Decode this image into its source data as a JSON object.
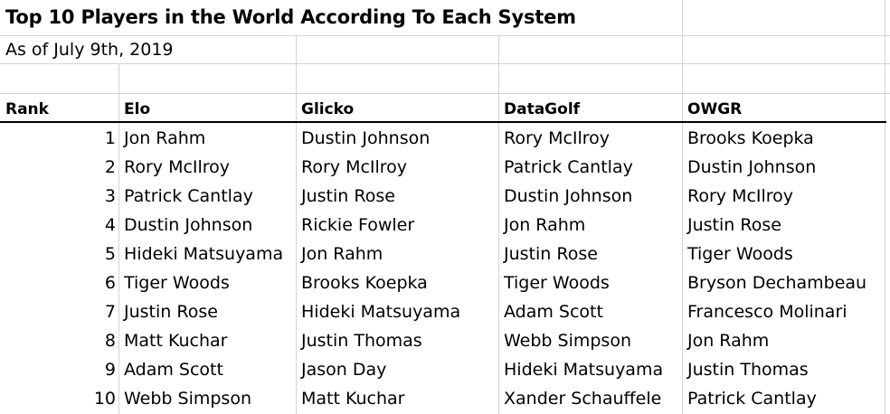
{
  "title": "Top 10 Players in the World According To Each System",
  "subtitle": "As of July 9th, 2019",
  "headers": [
    "Rank",
    "Elo",
    "Glicko",
    "DataGolf",
    "OWGR"
  ],
  "rows": [
    {
      "rank": "1",
      "elo": "Jon Rahm",
      "glicko": "Dustin Johnson",
      "datagolf": "Rory McIlroy",
      "owgr": "Brooks Koepka"
    },
    {
      "rank": "2",
      "elo": "Rory McIlroy",
      "glicko": "Rory McIlroy",
      "datagolf": "Patrick Cantlay",
      "owgr": "Dustin Johnson"
    },
    {
      "rank": "3",
      "elo": "Patrick Cantlay",
      "glicko": "Justin Rose",
      "datagolf": "Dustin Johnson",
      "owgr": "Rory McIlroy"
    },
    {
      "rank": "4",
      "elo": "Dustin Johnson",
      "glicko": "Rickie Fowler",
      "datagolf": "Jon Rahm",
      "owgr": "Justin Rose"
    },
    {
      "rank": "5",
      "elo": "Hideki Matsuyama",
      "glicko": "Jon Rahm",
      "datagolf": "Justin Rose",
      "owgr": "Tiger Woods"
    },
    {
      "rank": "6",
      "elo": "Tiger Woods",
      "glicko": "Brooks Koepka",
      "datagolf": "Tiger Woods",
      "owgr": "Bryson Dechambeau"
    },
    {
      "rank": "7",
      "elo": "Justin Rose",
      "glicko": "Hideki Matsuyama",
      "datagolf": "Adam Scott",
      "owgr": "Francesco Molinari"
    },
    {
      "rank": "8",
      "elo": "Matt Kuchar",
      "glicko": "Justin Thomas",
      "datagolf": "Webb Simpson",
      "owgr": "Jon Rahm"
    },
    {
      "rank": "9",
      "elo": "Adam Scott",
      "glicko": "Jason Day",
      "datagolf": "Hideki Matsuyama",
      "owgr": "Justin Thomas"
    },
    {
      "rank": "10",
      "elo": "Webb Simpson",
      "glicko": "Matt Kuchar",
      "datagolf": "Xander Schauffele",
      "owgr": "Patrick Cantlay"
    }
  ]
}
